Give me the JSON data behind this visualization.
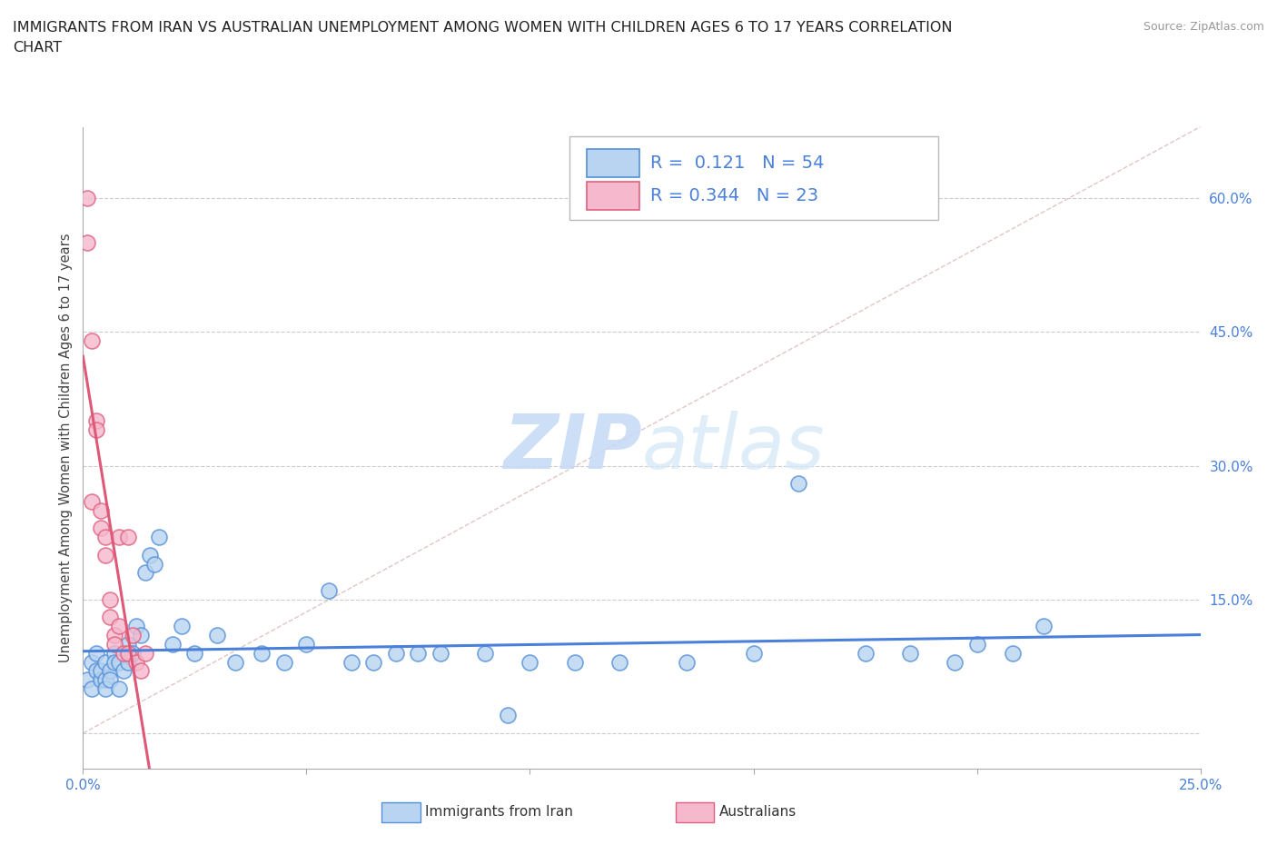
{
  "title_line1": "IMMIGRANTS FROM IRAN VS AUSTRALIAN UNEMPLOYMENT AMONG WOMEN WITH CHILDREN AGES 6 TO 17 YEARS CORRELATION",
  "title_line2": "CHART",
  "source_text": "Source: ZipAtlas.com",
  "ylabel": "Unemployment Among Women with Children Ages 6 to 17 years",
  "xlim": [
    0.0,
    0.25
  ],
  "ylim": [
    -0.04,
    0.68
  ],
  "xtick_positions": [
    0.0,
    0.05,
    0.1,
    0.15,
    0.2,
    0.25
  ],
  "xticklabels": [
    "0.0%",
    "",
    "",
    "",
    "",
    "25.0%"
  ],
  "ytick_positions": [
    0.0,
    0.15,
    0.3,
    0.45,
    0.6
  ],
  "yticklabels": [
    "",
    "15.0%",
    "30.0%",
    "45.0%",
    "60.0%"
  ],
  "grid_color": "#cccccc",
  "blue_fill": "#b8d4f0",
  "blue_edge": "#5590d9",
  "pink_fill": "#f5b8cc",
  "pink_edge": "#e06080",
  "blue_trend_color": "#4a80d9",
  "pink_trend_color": "#e05878",
  "diag_color": "#ddc0c0",
  "tick_label_color": "#4a80d9",
  "watermark_color": "#ddeeff",
  "legend_R1": "0.121",
  "legend_N1": "54",
  "legend_R2": "0.344",
  "legend_N2": "23",
  "blue_x": [
    0.001,
    0.002,
    0.002,
    0.003,
    0.003,
    0.004,
    0.004,
    0.005,
    0.005,
    0.005,
    0.006,
    0.006,
    0.007,
    0.007,
    0.008,
    0.008,
    0.009,
    0.01,
    0.01,
    0.011,
    0.012,
    0.013,
    0.014,
    0.015,
    0.016,
    0.017,
    0.02,
    0.022,
    0.025,
    0.03,
    0.034,
    0.04,
    0.045,
    0.05,
    0.055,
    0.06,
    0.065,
    0.07,
    0.075,
    0.08,
    0.09,
    0.1,
    0.11,
    0.12,
    0.135,
    0.15,
    0.16,
    0.175,
    0.185,
    0.195,
    0.2,
    0.208,
    0.215,
    0.095
  ],
  "blue_y": [
    0.06,
    0.05,
    0.08,
    0.07,
    0.09,
    0.06,
    0.07,
    0.06,
    0.08,
    0.05,
    0.07,
    0.06,
    0.09,
    0.08,
    0.05,
    0.08,
    0.07,
    0.1,
    0.08,
    0.09,
    0.12,
    0.11,
    0.18,
    0.2,
    0.19,
    0.22,
    0.1,
    0.12,
    0.09,
    0.11,
    0.08,
    0.09,
    0.08,
    0.1,
    0.16,
    0.08,
    0.08,
    0.09,
    0.09,
    0.09,
    0.09,
    0.08,
    0.08,
    0.08,
    0.08,
    0.09,
    0.28,
    0.09,
    0.09,
    0.08,
    0.1,
    0.09,
    0.12,
    0.02
  ],
  "pink_x": [
    0.001,
    0.001,
    0.002,
    0.002,
    0.003,
    0.003,
    0.004,
    0.004,
    0.005,
    0.005,
    0.006,
    0.006,
    0.007,
    0.007,
    0.008,
    0.008,
    0.009,
    0.01,
    0.01,
    0.011,
    0.012,
    0.013,
    0.014
  ],
  "pink_y": [
    0.6,
    0.55,
    0.44,
    0.26,
    0.35,
    0.34,
    0.23,
    0.25,
    0.22,
    0.2,
    0.15,
    0.13,
    0.11,
    0.1,
    0.22,
    0.12,
    0.09,
    0.09,
    0.22,
    0.11,
    0.08,
    0.07,
    0.09
  ]
}
